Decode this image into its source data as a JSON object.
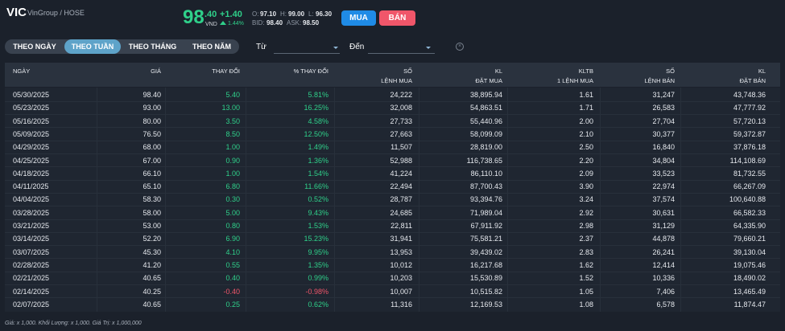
{
  "header": {
    "symbol": "VIC",
    "exchange": "VinGroup / HOSE",
    "price_int": "98",
    "price_dec": ".40",
    "currency": "VND",
    "change": "+1.40",
    "change_pct": "1.44%",
    "quotes": [
      {
        "label": "O:",
        "value": "97.10"
      },
      {
        "label": "H:",
        "value": "99.00"
      },
      {
        "label": "L:",
        "value": "96.30"
      }
    ],
    "bidask": [
      {
        "label": "BID:",
        "value": "98.40"
      },
      {
        "label": "ASK:",
        "value": "98.50"
      }
    ],
    "buy": "MUA",
    "sell": "BÁN"
  },
  "tabs": [
    "THEO NGÀY",
    "THEO TUẦN",
    "THEO THÁNG",
    "THEO NĂM"
  ],
  "active_tab": 1,
  "filters": {
    "from": "Từ",
    "to": "Đến"
  },
  "table": {
    "columns": [
      [
        "NGÀY"
      ],
      [
        "GIÁ"
      ],
      [
        "THAY ĐỔI"
      ],
      [
        "% THAY ĐỔI"
      ],
      [
        "SỐ",
        "LỆNH MUA"
      ],
      [
        "KL",
        "ĐẶT MUA"
      ],
      [
        "KLTB",
        "1 LỆNH MUA"
      ],
      [
        "SỐ",
        "LỆNH BÁN"
      ],
      [
        "KL",
        "ĐẶT BÁN"
      ]
    ],
    "rows": [
      [
        "05/30/2025",
        "98.40",
        "5.40",
        "5.81%",
        "24,222",
        "38,895.94",
        "1.61",
        "31,247",
        "43,748.36"
      ],
      [
        "05/23/2025",
        "93.00",
        "13.00",
        "16.25%",
        "32,008",
        "54,863.51",
        "1.71",
        "26,583",
        "47,777.92"
      ],
      [
        "05/16/2025",
        "80.00",
        "3.50",
        "4.58%",
        "27,733",
        "55,440.96",
        "2.00",
        "27,704",
        "57,720.13"
      ],
      [
        "05/09/2025",
        "76.50",
        "8.50",
        "12.50%",
        "27,663",
        "58,099.09",
        "2.10",
        "30,377",
        "59,372.87"
      ],
      [
        "04/29/2025",
        "68.00",
        "1.00",
        "1.49%",
        "11,507",
        "28,819.00",
        "2.50",
        "16,840",
        "37,876.18"
      ],
      [
        "04/25/2025",
        "67.00",
        "0.90",
        "1.36%",
        "52,988",
        "116,738.65",
        "2.20",
        "34,804",
        "114,108.69"
      ],
      [
        "04/18/2025",
        "66.10",
        "1.00",
        "1.54%",
        "41,224",
        "86,110.10",
        "2.09",
        "33,523",
        "81,732.55"
      ],
      [
        "04/11/2025",
        "65.10",
        "6.80",
        "11.66%",
        "22,494",
        "87,700.43",
        "3.90",
        "22,974",
        "66,267.09"
      ],
      [
        "04/04/2025",
        "58.30",
        "0.30",
        "0.52%",
        "28,787",
        "93,394.76",
        "3.24",
        "37,574",
        "100,640.88"
      ],
      [
        "03/28/2025",
        "58.00",
        "5.00",
        "9.43%",
        "24,685",
        "71,989.04",
        "2.92",
        "30,631",
        "66,582.33"
      ],
      [
        "03/21/2025",
        "53.00",
        "0.80",
        "1.53%",
        "22,811",
        "67,911.92",
        "2.98",
        "31,129",
        "64,335.90"
      ],
      [
        "03/14/2025",
        "52.20",
        "6.90",
        "15.23%",
        "31,941",
        "75,581.21",
        "2.37",
        "44,878",
        "79,660.21"
      ],
      [
        "03/07/2025",
        "45.30",
        "4.10",
        "9.95%",
        "13,953",
        "39,439.02",
        "2.83",
        "26,241",
        "39,130.04"
      ],
      [
        "02/28/2025",
        "41.20",
        "0.55",
        "1.35%",
        "10,012",
        "16,217.68",
        "1.62",
        "12,414",
        "19,075.46"
      ],
      [
        "02/21/2025",
        "40.65",
        "0.40",
        "0.99%",
        "10,203",
        "15,530.89",
        "1.52",
        "10,336",
        "18,490.02"
      ],
      [
        "02/14/2025",
        "40.25",
        "-0.40",
        "-0.98%",
        "10,007",
        "10,515.82",
        "1.05",
        "7,406",
        "13,465.49"
      ],
      [
        "02/07/2025",
        "40.65",
        "0.25",
        "0.62%",
        "11,316",
        "12,169.53",
        "1.08",
        "6,578",
        "11,874.47"
      ]
    ]
  },
  "footnote": "Giá: x 1,000. Khối Lượng: x 1,000. Giá Trị: x 1,000,000"
}
